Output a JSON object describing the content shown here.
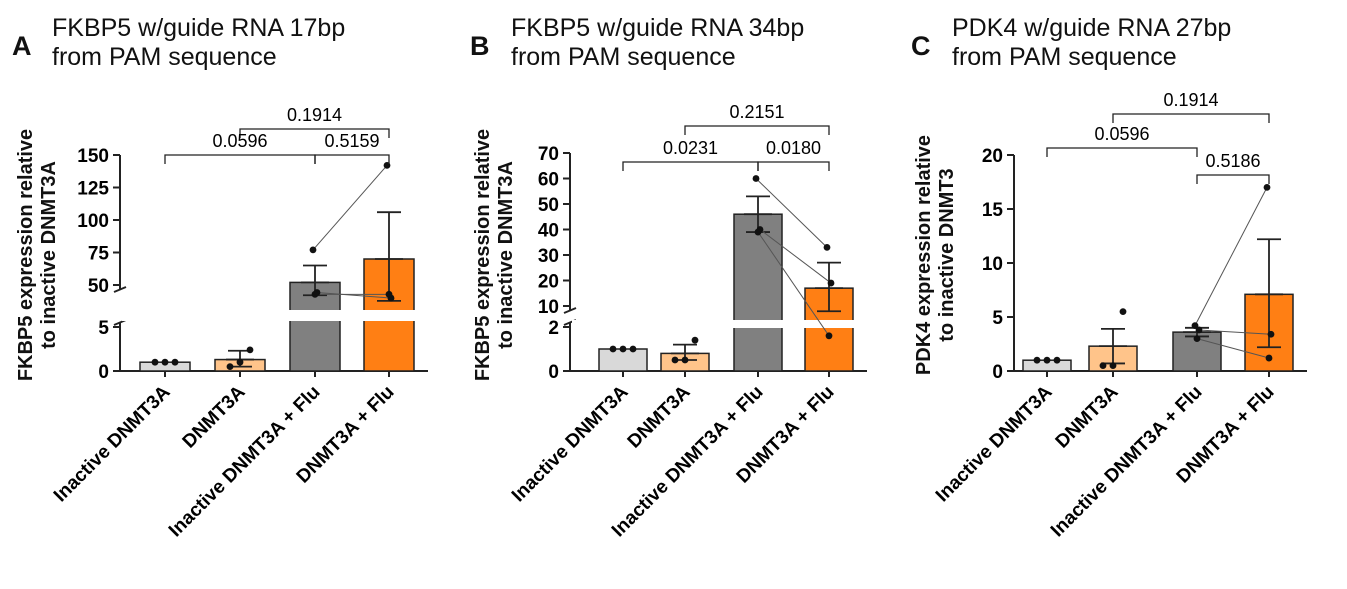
{
  "colors": {
    "inactive": "#d9d9d9",
    "dnmt3a": "#ffc48a",
    "inactive_flu": "#808080",
    "dnmt3a_flu": "#ff7f14",
    "stroke": "#222222"
  },
  "panels": [
    {
      "letter": "A",
      "title_line1": "FKBP5 w/guide RNA 17bp",
      "title_line2": "from PAM sequence",
      "ylabel_line1": "FKBP5 expression relative",
      "ylabel_line2": "to inactive DNMT3A"
    },
    {
      "letter": "B",
      "title_line1": "FKBP5 w/guide RNA 34bp",
      "title_line2": "from PAM sequence",
      "ylabel_line1": "FKBP5 expression relative",
      "ylabel_line2": "to inactive DNMT3A"
    },
    {
      "letter": "C",
      "title_line1": "PDK4 w/guide RNA 27bp",
      "title_line2": "from PAM sequence",
      "ylabel_line1": "PDK4 expression relative",
      "ylabel_line2": "to inactive DNMT3"
    }
  ],
  "chart_data": [
    {
      "type": "bar",
      "categories": [
        "Inactive DNMT3A",
        "DNMT3A",
        "Inactive DNMT3A + Flu",
        "DNMT3A + Flu"
      ],
      "values": [
        1.0,
        1.3,
        52,
        70
      ],
      "error_upper": [
        1.0,
        2.3,
        65,
        106
      ],
      "error_lower": [
        1.0,
        0.5,
        39,
        33
      ],
      "points": [
        [
          1.0,
          1.0,
          1.0
        ],
        [
          0.5,
          1.0,
          2.4
        ],
        [
          77,
          42,
          40
        ],
        [
          142,
          36,
          40
        ]
      ],
      "paired": [
        [
          2,
          3,
          0,
          0
        ],
        [
          2,
          3,
          1,
          1
        ],
        [
          2,
          3,
          2,
          2
        ]
      ],
      "axis_break": {
        "lower": [
          0,
          5
        ],
        "upper": [
          50,
          150
        ]
      },
      "yticks_lower": [
        "0",
        "5"
      ],
      "yticks_upper": [
        "50",
        "75",
        "100",
        "125",
        "150"
      ],
      "pvalues": [
        {
          "label": "0.1914",
          "from": 1,
          "to": 3,
          "level": 2
        },
        {
          "label": "0.0596",
          "from": 0,
          "to": 2,
          "level": 1
        },
        {
          "label": "0.5159",
          "from": 2,
          "to": 3,
          "level": 1
        }
      ]
    },
    {
      "type": "bar",
      "categories": [
        "Inactive DNMT3A",
        "DNMT3A",
        "Inactive DNMT3A + Flu",
        "DNMT3A + Flu"
      ],
      "values": [
        1.0,
        0.8,
        46,
        17
      ],
      "error_upper": [
        1.0,
        1.2,
        53,
        27
      ],
      "error_lower": [
        1.0,
        0.5,
        39,
        8
      ],
      "points": [
        [
          1.0,
          1.0,
          1.0
        ],
        [
          0.5,
          0.5,
          1.4
        ],
        [
          60,
          40,
          39
        ],
        [
          33,
          19,
          1.6
        ]
      ],
      "paired": [
        [
          2,
          3,
          0,
          0
        ],
        [
          2,
          3,
          1,
          1
        ],
        [
          2,
          3,
          2,
          2
        ]
      ],
      "axis_break": {
        "lower": [
          0,
          2
        ],
        "upper": [
          10,
          70
        ]
      },
      "yticks_lower": [
        "0",
        "2"
      ],
      "yticks_upper": [
        "10",
        "20",
        "30",
        "40",
        "50",
        "60",
        "70"
      ],
      "pvalues": [
        {
          "label": "0.2151",
          "from": 1,
          "to": 3,
          "level": 2
        },
        {
          "label": "0.0231",
          "from": 0,
          "to": 2,
          "level": 1
        },
        {
          "label": "0.0180",
          "from": 2,
          "to": 3,
          "level": 1
        }
      ]
    },
    {
      "type": "bar",
      "categories": [
        "Inactive DNMT3A",
        "DNMT3A",
        "Inactive DNMT3A + Flu",
        "DNMT3A + Flu"
      ],
      "values": [
        1.0,
        2.3,
        3.6,
        7.1
      ],
      "error_upper": [
        1.0,
        3.9,
        4.0,
        12.2
      ],
      "error_lower": [
        1.0,
        0.7,
        3.2,
        2.2
      ],
      "points": [
        [
          1.0,
          1.0,
          1.0
        ],
        [
          0.5,
          0.5,
          5.5
        ],
        [
          4.2,
          3.8,
          3.0
        ],
        [
          17.0,
          3.4,
          1.2
        ]
      ],
      "paired": [
        [
          2,
          3,
          0,
          0
        ],
        [
          2,
          3,
          1,
          1
        ],
        [
          2,
          3,
          2,
          2
        ]
      ],
      "ylim": [
        0,
        20
      ],
      "yticks": [
        "0",
        "5",
        "10",
        "15",
        "20"
      ],
      "pvalues": [
        {
          "label": "0.1914",
          "from": 1,
          "to": 3,
          "level": 3
        },
        {
          "label": "0.0596",
          "from": 0,
          "to": 2,
          "level": 2
        },
        {
          "label": "0.5186",
          "from": 2,
          "to": 3,
          "level": 1
        }
      ]
    }
  ]
}
